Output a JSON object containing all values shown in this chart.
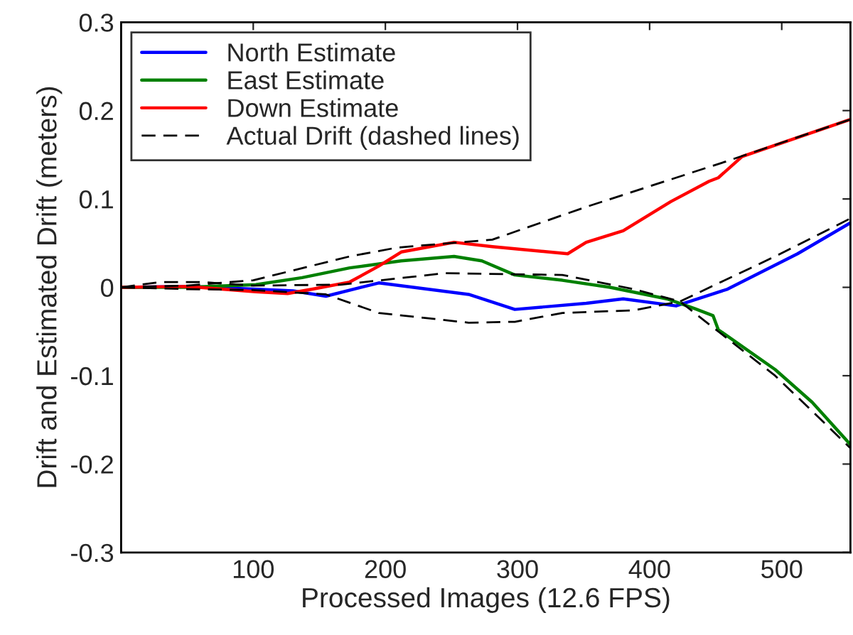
{
  "chart_data": {
    "type": "line",
    "xlabel": "Processed Images (12.6 FPS)",
    "ylabel": "Drift and Estimated Drift (meters)",
    "xlim": [
      0,
      552
    ],
    "ylim": [
      -0.3,
      0.3
    ],
    "xticks": [
      100,
      200,
      300,
      400,
      500
    ],
    "yticks": [
      -0.3,
      -0.2,
      -0.1,
      0,
      0.1,
      0.2,
      0.3
    ],
    "grid": false,
    "legend": "top left",
    "marker": "none",
    "series": [
      {
        "name": "North Estimate",
        "color": "#0000ff",
        "line_style": "solid",
        "x": [
          0,
          50,
          100,
          130,
          155,
          195,
          263,
          298,
          352,
          380,
          420,
          459,
          512,
          552
        ],
        "values": [
          0,
          0.001,
          -0.002,
          -0.004,
          -0.01,
          0.005,
          -0.008,
          -0.025,
          -0.018,
          -0.013,
          -0.021,
          -0.002,
          0.038,
          0.073
        ]
      },
      {
        "name": "East Estimate",
        "color": "#008000",
        "line_style": "solid",
        "x": [
          0,
          50,
          102,
          137,
          173,
          212,
          252,
          273,
          298,
          334,
          370,
          413,
          434,
          448,
          452,
          495,
          523,
          552
        ],
        "values": [
          0,
          0,
          0.003,
          0.011,
          0.022,
          0.03,
          0.035,
          0.03,
          0.014,
          0.008,
          0,
          -0.013,
          -0.024,
          -0.032,
          -0.048,
          -0.093,
          -0.13,
          -0.178
        ]
      },
      {
        "name": "Down Estimate",
        "color": "#ff0000",
        "line_style": "solid",
        "x": [
          0,
          50,
          102,
          126,
          145,
          173,
          195,
          212,
          252,
          281,
          338,
          352,
          380,
          416,
          445,
          452,
          470,
          552
        ],
        "values": [
          0,
          0.001,
          -0.005,
          -0.007,
          -0.002,
          0.006,
          0.024,
          0.04,
          0.051,
          0.046,
          0.038,
          0.051,
          0.064,
          0.097,
          0.12,
          0.124,
          0.148,
          0.19
        ]
      },
      {
        "name": "Actual Drift (dashed lines)",
        "color": "#000000",
        "line_style": "dashed",
        "x": [
          0,
          30,
          60,
          100,
          166,
          245,
          334,
          388,
          423,
          452,
          495,
          523,
          552
        ],
        "values": [
          0,
          0.006,
          0.006,
          0.002,
          0.003,
          0.016,
          0.014,
          -0.002,
          -0.016,
          -0.05,
          -0.1,
          -0.14,
          -0.182
        ]
      },
      {
        "color": "#000000",
        "line_style": "dashed",
        "x": [
          0,
          50,
          100,
          155,
          195,
          263,
          298,
          334,
          388,
          423,
          495,
          552
        ],
        "values": [
          0,
          -0.002,
          -0.003,
          -0.008,
          -0.029,
          -0.04,
          -0.039,
          -0.029,
          -0.026,
          -0.016,
          0.035,
          0.078
        ]
      },
      {
        "color": "#000000",
        "line_style": "dashed",
        "x": [
          0,
          50,
          100,
          173,
          209,
          281,
          352,
          459,
          552
        ],
        "values": [
          0,
          0.002,
          0.008,
          0.035,
          0.045,
          0.054,
          0.091,
          0.143,
          0.19
        ]
      }
    ]
  }
}
